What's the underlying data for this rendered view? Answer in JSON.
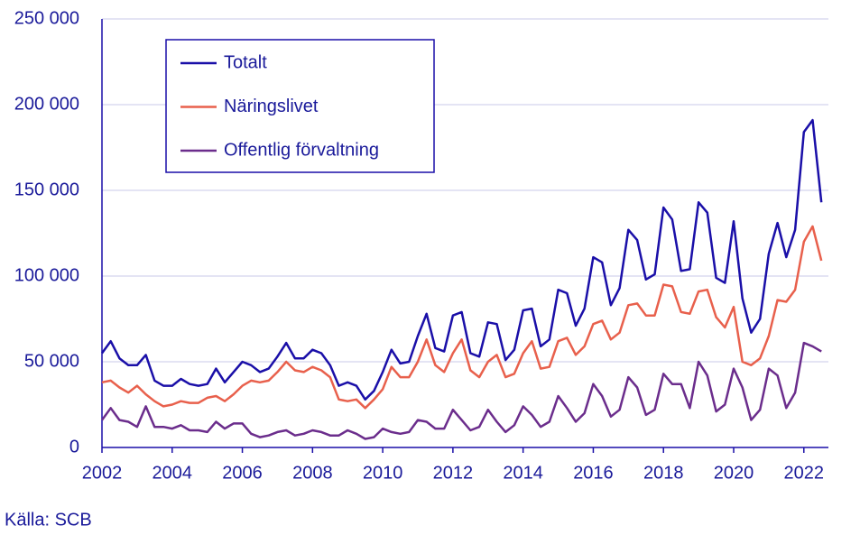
{
  "chart_data": {
    "type": "line",
    "x": [
      2002,
      2002.25,
      2002.5,
      2002.75,
      2003,
      2003.25,
      2003.5,
      2003.75,
      2004,
      2004.25,
      2004.5,
      2004.75,
      2005,
      2005.25,
      2005.5,
      2005.75,
      2006,
      2006.25,
      2006.5,
      2006.75,
      2007,
      2007.25,
      2007.5,
      2007.75,
      2008,
      2008.25,
      2008.5,
      2008.75,
      2009,
      2009.25,
      2009.5,
      2009.75,
      2010,
      2010.25,
      2010.5,
      2010.75,
      2011,
      2011.25,
      2011.5,
      2011.75,
      2012,
      2012.25,
      2012.5,
      2012.75,
      2013,
      2013.25,
      2013.5,
      2013.75,
      2014,
      2014.25,
      2014.5,
      2014.75,
      2015,
      2015.25,
      2015.5,
      2015.75,
      2016,
      2016.25,
      2016.5,
      2016.75,
      2017,
      2017.25,
      2017.5,
      2017.75,
      2018,
      2018.25,
      2018.5,
      2018.75,
      2019,
      2019.25,
      2019.5,
      2019.75,
      2020,
      2020.25,
      2020.5,
      2020.75,
      2021,
      2021.25,
      2021.5,
      2021.75,
      2022,
      2022.25,
      2022.5
    ],
    "series": [
      {
        "name": "Totalt",
        "color": "#1a0fa8",
        "values": [
          55000,
          62000,
          52000,
          48000,
          48000,
          54000,
          39000,
          36000,
          36000,
          40000,
          37000,
          36000,
          37000,
          46000,
          38000,
          44000,
          50000,
          48000,
          44000,
          46000,
          53000,
          61000,
          52000,
          52000,
          57000,
          55000,
          48000,
          36000,
          38000,
          36000,
          28000,
          33000,
          44000,
          57000,
          49000,
          50000,
          65000,
          78000,
          58000,
          56000,
          77000,
          79000,
          55000,
          53000,
          73000,
          72000,
          51000,
          57000,
          80000,
          81000,
          59000,
          63000,
          92000,
          90000,
          71000,
          81000,
          111000,
          108000,
          83000,
          93000,
          127000,
          121000,
          98000,
          101000,
          140000,
          133000,
          103000,
          104000,
          143000,
          137000,
          99000,
          96000,
          132000,
          87000,
          67000,
          75000,
          113000,
          131000,
          111000,
          127000,
          184000,
          191000,
          143000
        ]
      },
      {
        "name": "Näringslivet",
        "color": "#e8604c",
        "values": [
          38000,
          39000,
          35000,
          32000,
          36000,
          31000,
          27000,
          24000,
          25000,
          27000,
          26000,
          26000,
          29000,
          30000,
          27000,
          31000,
          36000,
          39000,
          38000,
          39000,
          44000,
          50000,
          45000,
          44000,
          47000,
          45000,
          41000,
          28000,
          27000,
          28000,
          23000,
          28000,
          34000,
          47000,
          41000,
          41000,
          50000,
          63000,
          48000,
          44000,
          55000,
          63000,
          45000,
          41000,
          50000,
          54000,
          41000,
          43000,
          55000,
          62000,
          46000,
          47000,
          62000,
          64000,
          54000,
          59000,
          72000,
          74000,
          63000,
          67000,
          83000,
          84000,
          77000,
          77000,
          95000,
          94000,
          79000,
          78000,
          91000,
          92000,
          76000,
          70000,
          82000,
          50000,
          48000,
          52000,
          65000,
          86000,
          85000,
          92000,
          120000,
          129000,
          109000
        ]
      },
      {
        "name": "Offentlig förvaltning",
        "color": "#6b2d8c",
        "values": [
          16000,
          23000,
          16000,
          15000,
          12000,
          24000,
          12000,
          12000,
          11000,
          13000,
          10000,
          10000,
          9000,
          15000,
          11000,
          14000,
          14000,
          8000,
          6000,
          7000,
          9000,
          10000,
          7000,
          8000,
          10000,
          9000,
          7000,
          7000,
          10000,
          8000,
          5000,
          6000,
          11000,
          9000,
          8000,
          9000,
          16000,
          15000,
          11000,
          11000,
          22000,
          16000,
          10000,
          12000,
          22000,
          15000,
          9000,
          13000,
          24000,
          19000,
          12000,
          15000,
          30000,
          23000,
          15000,
          20000,
          37000,
          30000,
          18000,
          22000,
          41000,
          35000,
          19000,
          22000,
          43000,
          37000,
          37000,
          23000,
          50000,
          42000,
          21000,
          25000,
          46000,
          35000,
          16000,
          22000,
          46000,
          42000,
          23000,
          32000,
          61000,
          59000,
          56000
        ]
      }
    ],
    "xlim": [
      2002,
      2022.7
    ],
    "xticks": [
      2002,
      2004,
      2006,
      2008,
      2010,
      2012,
      2014,
      2016,
      2018,
      2020,
      2022
    ],
    "ylim": [
      0,
      250000
    ],
    "yticks": [
      0,
      {
        "value": 50000,
        "label": "50 000"
      },
      {
        "value": 100000,
        "label": "100 000"
      },
      {
        "value": 150000,
        "label": "150 000"
      },
      {
        "value": 200000,
        "label": "200 000"
      },
      {
        "value": 250000,
        "label": "250 000"
      }
    ],
    "grid": true,
    "legend": "upper left",
    "source": "Källa: SCB"
  }
}
